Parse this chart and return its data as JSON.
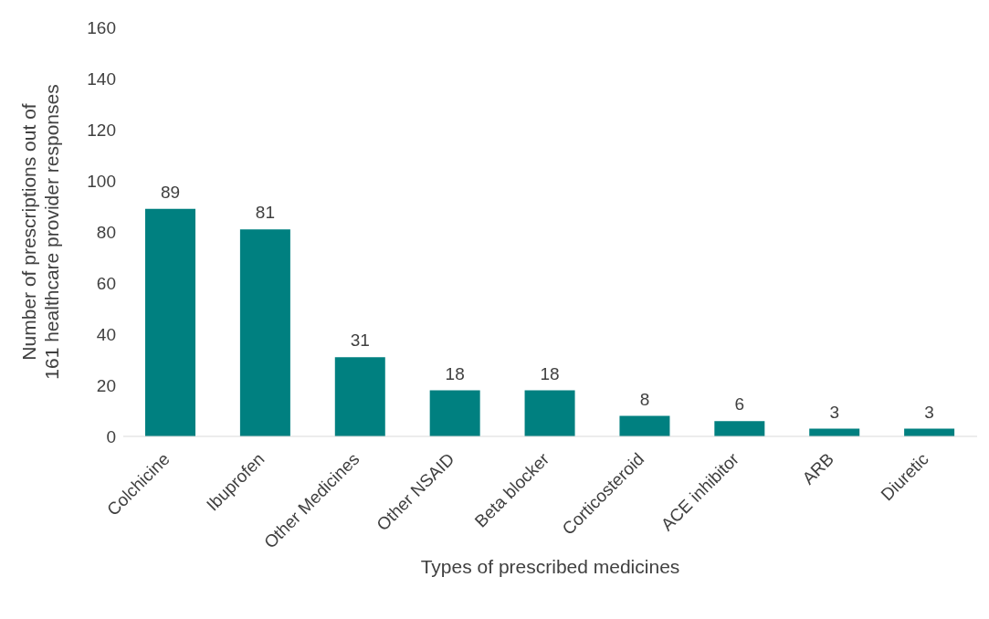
{
  "chart_data": {
    "type": "bar",
    "xlabel": "Types of prescribed medicines",
    "ylabel": "Number of prescriptions out of 161 healthcare provider responses",
    "categories": [
      "Colchicine",
      "Ibuprofen",
      "Other Medicines",
      "Other NSAID",
      "Beta blocker",
      "Corticosteroid",
      "ACE inhibitor",
      "ARB",
      "Diuretic"
    ],
    "values": [
      89,
      81,
      31,
      18,
      18,
      8,
      6,
      3,
      3
    ],
    "color": "#008080",
    "data_labels": true,
    "ylim": [
      0,
      160
    ],
    "yticks": [
      0,
      20,
      40,
      60,
      80,
      100,
      120,
      140,
      160
    ],
    "grid": false,
    "legend": false
  }
}
